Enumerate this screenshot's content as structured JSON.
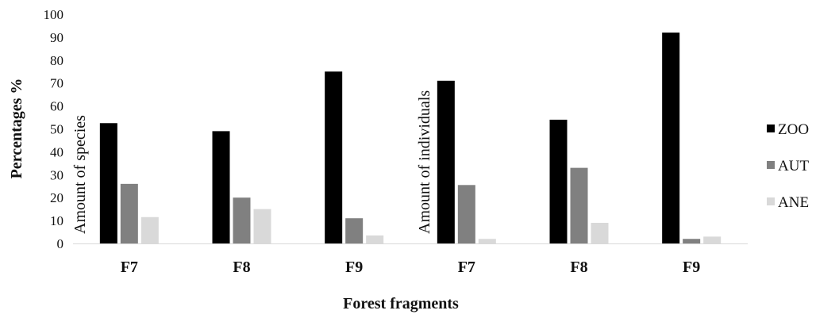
{
  "chart_data": {
    "type": "bar",
    "ylabel": "Percentages %",
    "xlabel": "Forest  fragments",
    "ylim": [
      0,
      100
    ],
    "yticks": [
      0,
      10,
      20,
      30,
      40,
      50,
      60,
      70,
      80,
      90,
      100
    ],
    "grid": false,
    "legend_position": "right",
    "series_meta": [
      {
        "name": "ZOO",
        "color": "#000000"
      },
      {
        "name": "AUT",
        "color": "#808080"
      },
      {
        "name": "ANE",
        "color": "#d9d9d9"
      }
    ],
    "panels": [
      {
        "label": "Amount of species",
        "categories": [
          "F7",
          "F8",
          "F9"
        ],
        "series": [
          {
            "name": "ZOO",
            "values": [
              52.5,
              49,
              75
            ]
          },
          {
            "name": "AUT",
            "values": [
              26,
              20,
              11
            ]
          },
          {
            "name": "ANE",
            "values": [
              11.5,
              15,
              3.5
            ]
          }
        ]
      },
      {
        "label": "Amount of individuals",
        "categories": [
          "F7",
          "F8",
          "F9"
        ],
        "series": [
          {
            "name": "ZOO",
            "values": [
              71,
              54,
              92
            ]
          },
          {
            "name": "AUT",
            "values": [
              25.5,
              33,
              2
            ]
          },
          {
            "name": "ANE",
            "values": [
              2,
              9,
              3
            ]
          }
        ]
      }
    ]
  }
}
